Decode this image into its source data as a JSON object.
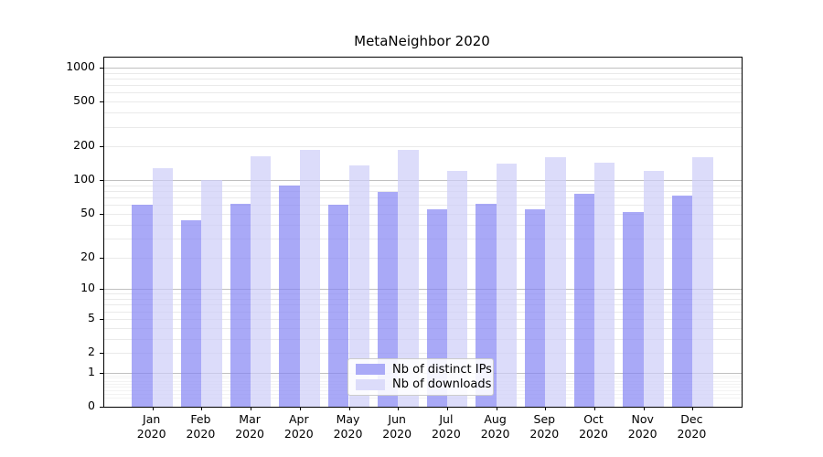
{
  "chart_data": {
    "type": "bar",
    "title": "MetaNeighbor 2020",
    "categories": [
      "Jan",
      "Feb",
      "Mar",
      "Apr",
      "May",
      "Jun",
      "Jul",
      "Aug",
      "Sep",
      "Oct",
      "Nov",
      "Dec"
    ],
    "year_label": "2020",
    "series": [
      {
        "name": "Nb of distinct IPs",
        "color": "rgba(133,133,243,0.7)",
        "legend_color": "#aaaaf7",
        "values": [
          60,
          44,
          62,
          90,
          60,
          78,
          55,
          62,
          55,
          76,
          52,
          73
        ]
      },
      {
        "name": "Nb of downloads",
        "color": "rgba(205,205,248,0.7)",
        "legend_color": "#dcdcfa",
        "values": [
          129,
          100,
          163,
          187,
          135,
          187,
          121,
          140,
          160,
          143,
          122,
          162
        ]
      }
    ],
    "y_scale": "log1p",
    "y_max": 1228,
    "y_ticks": [
      1000,
      500,
      200,
      100,
      50,
      20,
      10,
      5,
      2,
      1,
      0
    ],
    "y_major_grid": [
      1,
      10,
      100,
      1000
    ],
    "y_minor_grid": [
      2,
      3,
      4,
      5,
      6,
      7,
      8,
      9,
      20,
      30,
      40,
      50,
      60,
      70,
      80,
      90,
      200,
      300,
      400,
      500,
      600,
      700,
      800,
      900
    ],
    "y_subminor_grid": [
      0.2,
      0.3,
      0.4,
      0.5,
      0.6,
      0.7,
      0.8,
      0.9
    ],
    "legend_position": "lower center",
    "grid": "on",
    "colors": {
      "bar_distinct_ips": "#aaaaf7",
      "bar_downloads": "#dcdcfa",
      "grid_major": "#c0c0c0",
      "grid_minor": "#eaeaea",
      "axis": "#000000"
    }
  }
}
